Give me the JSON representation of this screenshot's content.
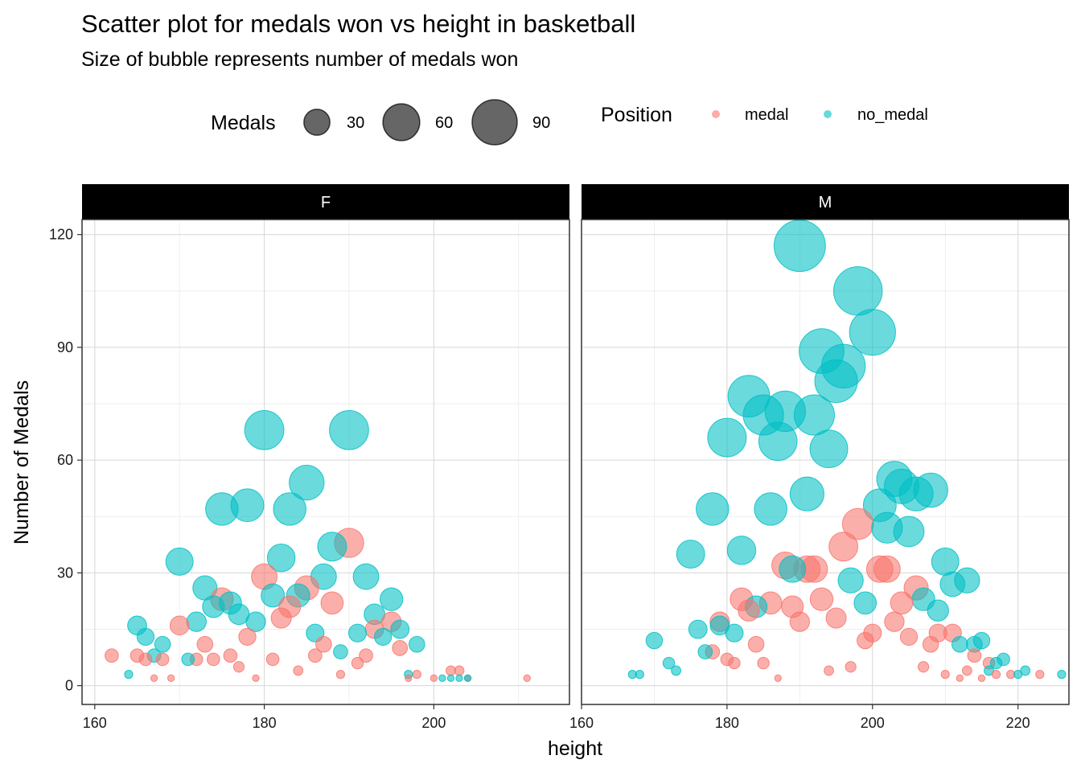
{
  "title": "Scatter plot for medals won vs height in basketball",
  "subtitle": "Size of bubble represents number of medals won",
  "legend": {
    "size_title": "Medals",
    "size_entries": [
      30,
      60,
      90
    ],
    "color_title": "Position",
    "color_entries": [
      {
        "label": "medal",
        "color": "#F8766D"
      },
      {
        "label": "no_medal",
        "color": "#00BFC4"
      }
    ]
  },
  "colors": {
    "medal": "#F8766D",
    "no_medal": "#00BFC4"
  },
  "chart_data": {
    "type": "scatter",
    "xlabel": "height",
    "ylabel": "Number of Medals",
    "size_variable": "Medals",
    "color_variable": "Position",
    "ylim": [
      -5,
      124
    ],
    "yticks": [
      0,
      30,
      60,
      90,
      120
    ],
    "grid": true,
    "legend_position": "top",
    "panels": [
      {
        "name": "F",
        "xlim": [
          158.5,
          216
        ],
        "xticks": [
          160,
          180,
          200
        ],
        "series": [
          {
            "name": "medal",
            "points": [
              [
                162,
                8
              ],
              [
                165,
                8
              ],
              [
                166,
                7
              ],
              [
                167,
                2
              ],
              [
                168,
                7
              ],
              [
                169,
                2
              ],
              [
                170,
                16
              ],
              [
                172,
                7
              ],
              [
                173,
                11
              ],
              [
                174,
                7
              ],
              [
                175,
                23
              ],
              [
                176,
                8
              ],
              [
                177,
                5
              ],
              [
                178,
                13
              ],
              [
                179,
                2
              ],
              [
                180,
                29
              ],
              [
                181,
                7
              ],
              [
                182,
                18
              ],
              [
                183,
                21
              ],
              [
                184,
                4
              ],
              [
                185,
                26
              ],
              [
                186,
                8
              ],
              [
                187,
                11
              ],
              [
                188,
                22
              ],
              [
                189,
                3
              ],
              [
                190,
                38
              ],
              [
                191,
                6
              ],
              [
                192,
                8
              ],
              [
                193,
                15
              ],
              [
                195,
                17
              ],
              [
                196,
                10
              ],
              [
                197,
                2
              ],
              [
                198,
                3
              ],
              [
                200,
                2
              ],
              [
                202,
                4
              ],
              [
                203,
                4
              ],
              [
                204,
                2
              ],
              [
                211,
                2
              ]
            ]
          },
          {
            "name": "no_medal",
            "points": [
              [
                164,
                3
              ],
              [
                165,
                16
              ],
              [
                166,
                13
              ],
              [
                167,
                8
              ],
              [
                168,
                11
              ],
              [
                170,
                33
              ],
              [
                171,
                7
              ],
              [
                172,
                17
              ],
              [
                173,
                26
              ],
              [
                174,
                21
              ],
              [
                175,
                47
              ],
              [
                176,
                22
              ],
              [
                177,
                19
              ],
              [
                178,
                48
              ],
              [
                179,
                17
              ],
              [
                180,
                68
              ],
              [
                181,
                24
              ],
              [
                182,
                34
              ],
              [
                183,
                47
              ],
              [
                184,
                24
              ],
              [
                185,
                54
              ],
              [
                186,
                14
              ],
              [
                187,
                29
              ],
              [
                188,
                37
              ],
              [
                189,
                9
              ],
              [
                190,
                68
              ],
              [
                191,
                14
              ],
              [
                192,
                29
              ],
              [
                193,
                19
              ],
              [
                194,
                13
              ],
              [
                195,
                23
              ],
              [
                196,
                15
              ],
              [
                197,
                3
              ],
              [
                198,
                11
              ],
              [
                201,
                2
              ],
              [
                202,
                2
              ],
              [
                203,
                2
              ],
              [
                204,
                2
              ]
            ]
          }
        ]
      },
      {
        "name": "M",
        "xlim": [
          160,
          227
        ],
        "xticks": [
          160,
          180,
          200,
          220
        ],
        "series": [
          {
            "name": "medal",
            "points": [
              [
                178,
                9
              ],
              [
                179,
                17
              ],
              [
                180,
                7
              ],
              [
                181,
                6
              ],
              [
                182,
                23
              ],
              [
                183,
                20
              ],
              [
                184,
                11
              ],
              [
                185,
                6
              ],
              [
                186,
                22
              ],
              [
                187,
                2
              ],
              [
                188,
                32
              ],
              [
                189,
                21
              ],
              [
                190,
                17
              ],
              [
                191,
                31
              ],
              [
                192,
                31
              ],
              [
                193,
                23
              ],
              [
                194,
                4
              ],
              [
                195,
                18
              ],
              [
                196,
                37
              ],
              [
                197,
                5
              ],
              [
                198,
                43
              ],
              [
                199,
                12
              ],
              [
                200,
                14
              ],
              [
                201,
                31
              ],
              [
                202,
                31
              ],
              [
                203,
                17
              ],
              [
                204,
                22
              ],
              [
                205,
                13
              ],
              [
                206,
                26
              ],
              [
                207,
                5
              ],
              [
                208,
                11
              ],
              [
                209,
                14
              ],
              [
                210,
                3
              ],
              [
                211,
                14
              ],
              [
                212,
                2
              ],
              [
                213,
                4
              ],
              [
                214,
                8
              ],
              [
                215,
                2
              ],
              [
                216,
                6
              ],
              [
                217,
                3
              ],
              [
                219,
                3
              ],
              [
                223,
                3
              ]
            ]
          },
          {
            "name": "no_medal",
            "points": [
              [
                167,
                3
              ],
              [
                168,
                3
              ],
              [
                170,
                12
              ],
              [
                172,
                6
              ],
              [
                173,
                4
              ],
              [
                175,
                35
              ],
              [
                176,
                15
              ],
              [
                177,
                9
              ],
              [
                178,
                47
              ],
              [
                179,
                16
              ],
              [
                180,
                66
              ],
              [
                181,
                14
              ],
              [
                182,
                36
              ],
              [
                183,
                77
              ],
              [
                184,
                21
              ],
              [
                185,
                72
              ],
              [
                186,
                47
              ],
              [
                187,
                65
              ],
              [
                188,
                73
              ],
              [
                189,
                31
              ],
              [
                190,
                117
              ],
              [
                191,
                51
              ],
              [
                192,
                72
              ],
              [
                193,
                89
              ],
              [
                194,
                63
              ],
              [
                195,
                81
              ],
              [
                196,
                85
              ],
              [
                197,
                28
              ],
              [
                198,
                105
              ],
              [
                199,
                22
              ],
              [
                200,
                94
              ],
              [
                201,
                48
              ],
              [
                202,
                42
              ],
              [
                203,
                55
              ],
              [
                204,
                53
              ],
              [
                205,
                41
              ],
              [
                206,
                51
              ],
              [
                207,
                23
              ],
              [
                208,
                52
              ],
              [
                209,
                20
              ],
              [
                210,
                33
              ],
              [
                211,
                27
              ],
              [
                212,
                11
              ],
              [
                213,
                28
              ],
              [
                214,
                11
              ],
              [
                215,
                12
              ],
              [
                216,
                4
              ],
              [
                217,
                6
              ],
              [
                218,
                7
              ],
              [
                220,
                3
              ],
              [
                221,
                4
              ],
              [
                226,
                3
              ]
            ]
          }
        ]
      }
    ]
  }
}
